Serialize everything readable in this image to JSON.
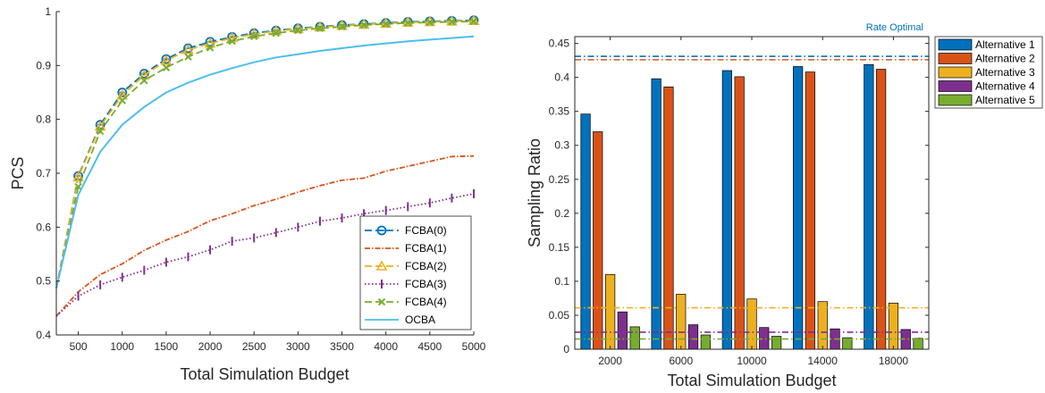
{
  "colors": {
    "blue": "#0072BD",
    "orange": "#D95319",
    "yellow": "#EDB120",
    "purple": "#7E2F8E",
    "green": "#77AC30",
    "lightblue": "#4DBEEE"
  },
  "chart_data": [
    {
      "type": "line",
      "xlabel": "Total Simulation Budget",
      "ylabel": "PCS",
      "xlim": [
        250,
        5000
      ],
      "ylim": [
        0.4,
        1.0
      ],
      "xticks": [
        500,
        1000,
        1500,
        2000,
        2500,
        3000,
        3500,
        4000,
        4500,
        5000
      ],
      "yticks": [
        0.4,
        0.5,
        0.6,
        0.7,
        0.8,
        0.9,
        1.0
      ],
      "ytick_labels": [
        "0.4",
        "0.5",
        "0.6",
        "0.7",
        "0.8",
        "0.9",
        "1"
      ],
      "grid": false,
      "legend_position": "bottom-right",
      "x": [
        250,
        500,
        750,
        1000,
        1250,
        1500,
        1750,
        2000,
        2250,
        2500,
        2750,
        3000,
        3250,
        3500,
        3750,
        4000,
        4250,
        4500,
        4750,
        5000
      ],
      "series": [
        {
          "name": "FCBA(0)",
          "marker": "circle",
          "dash": "8,4",
          "color": "blue",
          "values": [
            0.487,
            0.695,
            0.79,
            0.85,
            0.885,
            0.912,
            0.932,
            0.944,
            0.953,
            0.96,
            0.965,
            0.969,
            0.972,
            0.975,
            0.977,
            0.979,
            0.981,
            0.982,
            0.983,
            0.984
          ]
        },
        {
          "name": "FCBA(1)",
          "marker": "none",
          "dash": "6,2,1.5,2",
          "color": "orange",
          "values": [
            0.435,
            0.48,
            0.512,
            0.532,
            0.557,
            0.576,
            0.592,
            0.612,
            0.625,
            0.64,
            0.652,
            0.665,
            0.677,
            0.687,
            0.691,
            0.704,
            0.713,
            0.722,
            0.731,
            0.732
          ]
        },
        {
          "name": "FCBA(2)",
          "marker": "triangle",
          "dash": "8,4",
          "color": "yellow",
          "values": [
            0.487,
            0.693,
            0.787,
            0.845,
            0.882,
            0.909,
            0.929,
            0.941,
            0.951,
            0.958,
            0.964,
            0.968,
            0.971,
            0.974,
            0.976,
            0.978,
            0.98,
            0.981,
            0.982,
            0.983
          ]
        },
        {
          "name": "FCBA(3)",
          "marker": "vbar",
          "dash": "1.5,2.5",
          "color": "purple",
          "values": [
            0.435,
            0.472,
            0.493,
            0.507,
            0.52,
            0.535,
            0.545,
            0.558,
            0.574,
            0.58,
            0.59,
            0.6,
            0.611,
            0.617,
            0.625,
            0.631,
            0.638,
            0.645,
            0.654,
            0.662
          ]
        },
        {
          "name": "FCBA(4)",
          "marker": "x",
          "dash": "8,4",
          "color": "green",
          "values": [
            0.487,
            0.675,
            0.778,
            0.835,
            0.872,
            0.896,
            0.916,
            0.933,
            0.945,
            0.954,
            0.96,
            0.965,
            0.969,
            0.972,
            0.975,
            0.977,
            0.979,
            0.98,
            0.981,
            0.982
          ]
        },
        {
          "name": "OCBA",
          "marker": "none",
          "dash": "",
          "color": "lightblue",
          "values": [
            0.487,
            0.66,
            0.74,
            0.79,
            0.823,
            0.85,
            0.868,
            0.883,
            0.895,
            0.906,
            0.915,
            0.921,
            0.927,
            0.932,
            0.937,
            0.941,
            0.945,
            0.948,
            0.951,
            0.954
          ]
        }
      ]
    },
    {
      "type": "bar",
      "xlabel": "Total Simulation Budget",
      "ylabel": "Sampling Ratio",
      "ylim": [
        0,
        0.46
      ],
      "yticks": [
        0,
        0.05,
        0.1,
        0.15,
        0.2,
        0.25,
        0.3,
        0.35,
        0.4,
        0.45
      ],
      "ytick_labels": [
        "0",
        "0.05",
        "0.1",
        "0.15",
        "0.2",
        "0.25",
        "0.3",
        "0.35",
        "0.4",
        "0.45"
      ],
      "categories": [
        "2000",
        "6000",
        "10000",
        "14000",
        "18000"
      ],
      "grid": false,
      "legend_position": "outside-right",
      "series": [
        {
          "name": "Alternative 1",
          "color": "blue",
          "values": [
            0.346,
            0.398,
            0.41,
            0.416,
            0.419
          ],
          "optimal": 0.431
        },
        {
          "name": "Alternative 2",
          "color": "orange",
          "values": [
            0.32,
            0.386,
            0.401,
            0.408,
            0.412
          ],
          "optimal": 0.426
        },
        {
          "name": "Alternative 3",
          "color": "yellow",
          "values": [
            0.11,
            0.081,
            0.074,
            0.07,
            0.068
          ],
          "optimal": 0.061
        },
        {
          "name": "Alternative 4",
          "color": "purple",
          "values": [
            0.055,
            0.036,
            0.032,
            0.03,
            0.029
          ],
          "optimal": 0.025
        },
        {
          "name": "Alternative 5",
          "color": "green",
          "values": [
            0.033,
            0.021,
            0.019,
            0.017,
            0.016
          ],
          "optimal": 0.015
        }
      ],
      "annotation": "Rate Optimal"
    }
  ]
}
